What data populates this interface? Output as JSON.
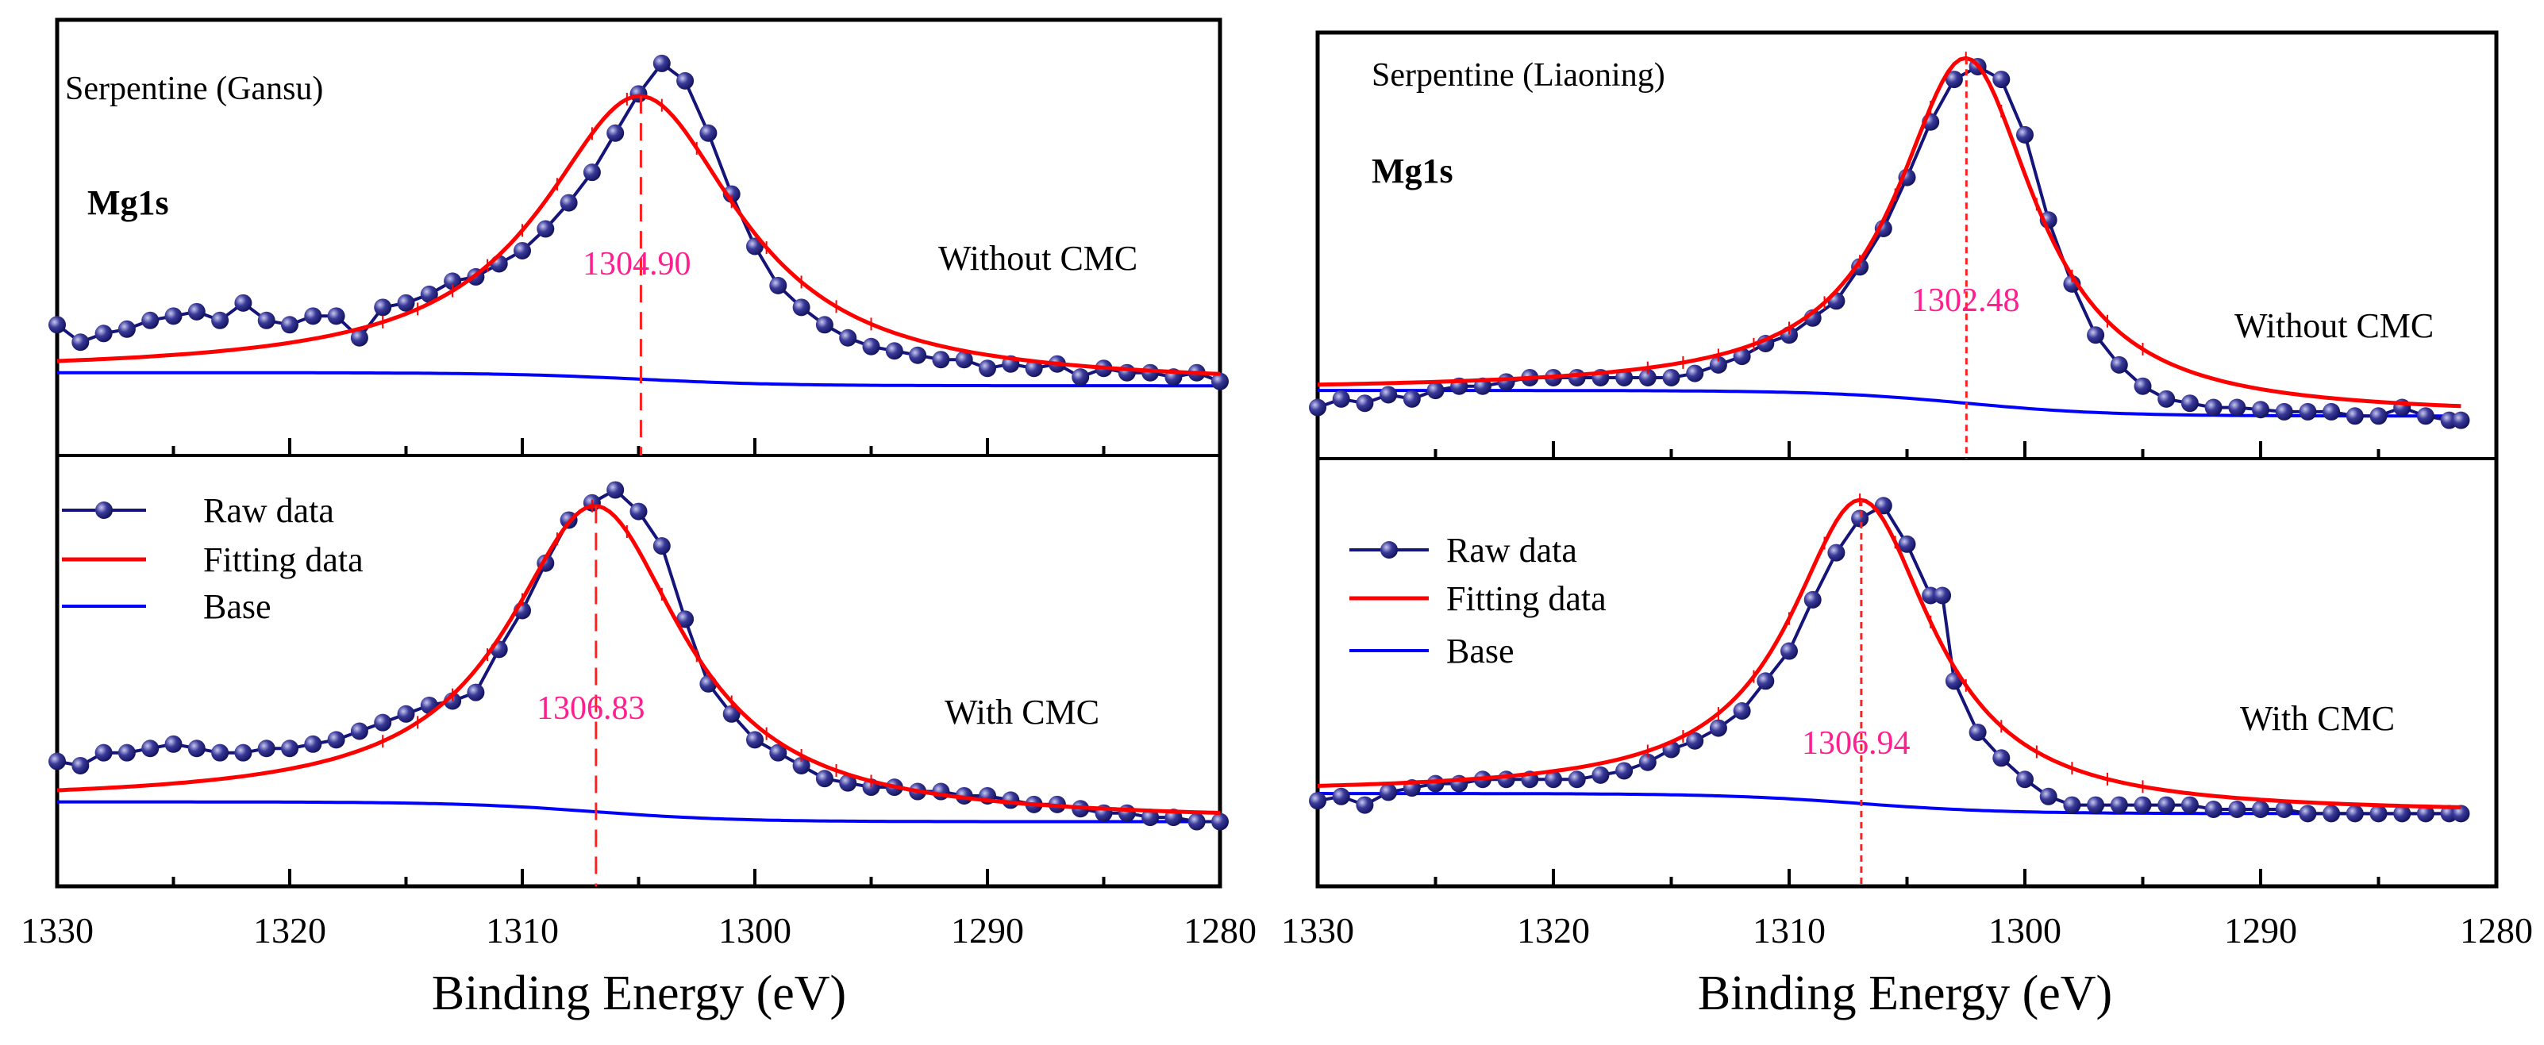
{
  "chart_data": [
    {
      "type": "line",
      "title": "Serpentine (Gansu)",
      "element_label": "Mg1s",
      "xlabel": "Binding Energy (eV)",
      "ylabel": "",
      "xlim": [
        1330,
        1280
      ],
      "xticks": [
        "1330",
        "1320",
        "1310",
        "1300",
        "1290",
        "1280"
      ],
      "legend": {
        "placement": "left",
        "entries": [
          "Raw data",
          "Fitting data",
          "Base"
        ]
      },
      "colors": {
        "raw": "#14147a",
        "fit": "#ff0000",
        "base": "#0000ff",
        "peak_label": "#ff1f8f"
      },
      "subplots": [
        {
          "condition": "Without CMC",
          "peak_label": "1304.90",
          "fit": {
            "center": 1304.9,
            "height": 0.65,
            "hwhm": 5.2,
            "base_left": 0.19,
            "base_right": 0.16
          },
          "raw": [
            [
              1330,
              0.3
            ],
            [
              1329,
              0.26
            ],
            [
              1328,
              0.28
            ],
            [
              1327,
              0.29
            ],
            [
              1326,
              0.31
            ],
            [
              1325,
              0.32
            ],
            [
              1324,
              0.33
            ],
            [
              1323,
              0.31
            ],
            [
              1322,
              0.35
            ],
            [
              1321,
              0.31
            ],
            [
              1320,
              0.3
            ],
            [
              1319,
              0.32
            ],
            [
              1318,
              0.32
            ],
            [
              1317,
              0.27
            ],
            [
              1316,
              0.34
            ],
            [
              1315,
              0.35
            ],
            [
              1314,
              0.37
            ],
            [
              1313,
              0.4
            ],
            [
              1312,
              0.41
            ],
            [
              1311,
              0.44
            ],
            [
              1310,
              0.47
            ],
            [
              1309,
              0.52
            ],
            [
              1308,
              0.58
            ],
            [
              1307,
              0.65
            ],
            [
              1306,
              0.74
            ],
            [
              1305,
              0.83
            ],
            [
              1304,
              0.9
            ],
            [
              1303,
              0.86
            ],
            [
              1302,
              0.74
            ],
            [
              1301,
              0.6
            ],
            [
              1300,
              0.48
            ],
            [
              1299,
              0.39
            ],
            [
              1298,
              0.34
            ],
            [
              1297,
              0.3
            ],
            [
              1296,
              0.27
            ],
            [
              1295,
              0.25
            ],
            [
              1294,
              0.24
            ],
            [
              1293,
              0.23
            ],
            [
              1292,
              0.22
            ],
            [
              1291,
              0.22
            ],
            [
              1290,
              0.2
            ],
            [
              1289,
              0.21
            ],
            [
              1288,
              0.2
            ],
            [
              1287,
              0.21
            ],
            [
              1286,
              0.18
            ],
            [
              1285,
              0.2
            ],
            [
              1284,
              0.19
            ],
            [
              1283,
              0.19
            ],
            [
              1282,
              0.18
            ],
            [
              1281,
              0.19
            ],
            [
              1280,
              0.17
            ]
          ]
        },
        {
          "condition": "With CMC",
          "peak_label": "1306.83",
          "fit": {
            "center": 1306.83,
            "height": 0.71,
            "hwhm": 4.6,
            "base_left": 0.196,
            "base_right": 0.15
          },
          "raw": [
            [
              1330,
              0.29
            ],
            [
              1329,
              0.28
            ],
            [
              1328,
              0.31
            ],
            [
              1327,
              0.31
            ],
            [
              1326,
              0.32
            ],
            [
              1325,
              0.33
            ],
            [
              1324,
              0.32
            ],
            [
              1323,
              0.31
            ],
            [
              1322,
              0.31
            ],
            [
              1321,
              0.32
            ],
            [
              1320,
              0.32
            ],
            [
              1319,
              0.33
            ],
            [
              1318,
              0.34
            ],
            [
              1317,
              0.36
            ],
            [
              1316,
              0.38
            ],
            [
              1315,
              0.4
            ],
            [
              1314,
              0.42
            ],
            [
              1313,
              0.43
            ],
            [
              1312,
              0.45
            ],
            [
              1311,
              0.55
            ],
            [
              1310,
              0.64
            ],
            [
              1309,
              0.75
            ],
            [
              1308,
              0.85
            ],
            [
              1307,
              0.89
            ],
            [
              1306,
              0.92
            ],
            [
              1305,
              0.87
            ],
            [
              1304,
              0.79
            ],
            [
              1303,
              0.62
            ],
            [
              1302,
              0.47
            ],
            [
              1301,
              0.4
            ],
            [
              1300,
              0.34
            ],
            [
              1299,
              0.31
            ],
            [
              1298,
              0.28
            ],
            [
              1297,
              0.25
            ],
            [
              1296,
              0.24
            ],
            [
              1295,
              0.23
            ],
            [
              1294,
              0.23
            ],
            [
              1293,
              0.22
            ],
            [
              1292,
              0.22
            ],
            [
              1291,
              0.21
            ],
            [
              1290,
              0.21
            ],
            [
              1289,
              0.2
            ],
            [
              1288,
              0.19
            ],
            [
              1287,
              0.19
            ],
            [
              1286,
              0.18
            ],
            [
              1285,
              0.17
            ],
            [
              1284,
              0.17
            ],
            [
              1283,
              0.16
            ],
            [
              1282,
              0.16
            ],
            [
              1281,
              0.15
            ],
            [
              1280,
              0.15
            ]
          ]
        }
      ]
    },
    {
      "type": "line",
      "title": "Serpentine (Liaoning)",
      "element_label": "Mg1s",
      "xlabel": "Binding Energy (eV)",
      "ylabel": "",
      "xlim": [
        1330,
        1280
      ],
      "xticks": [
        "1330",
        "1320",
        "1310",
        "1300",
        "1290",
        "1280"
      ],
      "legend": {
        "placement": "left",
        "entries": [
          "Raw data",
          "Fitting data",
          "Base"
        ]
      },
      "colors": {
        "raw": "#14147a",
        "fit": "#ff0000",
        "base": "#0000ff",
        "peak_label": "#ff1f8f"
      },
      "subplots": [
        {
          "condition": "Without CMC",
          "peak_label": "1302.48",
          "fit": {
            "center": 1302.48,
            "height": 0.81,
            "hwhm": 3.6,
            "base_left": 0.16,
            "base_right": 0.1
          },
          "raw": [
            [
              1330,
              0.12
            ],
            [
              1329,
              0.14
            ],
            [
              1328,
              0.13
            ],
            [
              1327,
              0.15
            ],
            [
              1326,
              0.14
            ],
            [
              1325,
              0.16
            ],
            [
              1324,
              0.17
            ],
            [
              1323,
              0.17
            ],
            [
              1322,
              0.18
            ],
            [
              1321,
              0.19
            ],
            [
              1320,
              0.19
            ],
            [
              1319,
              0.19
            ],
            [
              1318,
              0.19
            ],
            [
              1317,
              0.19
            ],
            [
              1316,
              0.19
            ],
            [
              1315,
              0.19
            ],
            [
              1314,
              0.2
            ],
            [
              1313,
              0.22
            ],
            [
              1312,
              0.24
            ],
            [
              1311,
              0.27
            ],
            [
              1310,
              0.29
            ],
            [
              1309,
              0.33
            ],
            [
              1308,
              0.37
            ],
            [
              1307,
              0.45
            ],
            [
              1306,
              0.54
            ],
            [
              1305,
              0.66
            ],
            [
              1304,
              0.79
            ],
            [
              1303,
              0.89
            ],
            [
              1302,
              0.92
            ],
            [
              1301,
              0.89
            ],
            [
              1300,
              0.76
            ],
            [
              1299,
              0.56
            ],
            [
              1298,
              0.41
            ],
            [
              1297,
              0.29
            ],
            [
              1296,
              0.22
            ],
            [
              1295,
              0.17
            ],
            [
              1294,
              0.14
            ],
            [
              1293,
              0.13
            ],
            [
              1292,
              0.12
            ],
            [
              1291,
              0.12
            ],
            [
              1290,
              0.115
            ],
            [
              1289,
              0.11
            ],
            [
              1288,
              0.11
            ],
            [
              1287,
              0.11
            ],
            [
              1286,
              0.1
            ],
            [
              1285,
              0.1
            ],
            [
              1284,
              0.12
            ],
            [
              1283,
              0.1
            ],
            [
              1282,
              0.09
            ],
            [
              1281.5,
              0.09
            ]
          ]
        },
        {
          "condition": "With CMC",
          "peak_label": "1306.94",
          "fit": {
            "center": 1306.94,
            "height": 0.71,
            "hwhm": 3.7,
            "base_left": 0.217,
            "base_right": 0.17
          },
          "raw": [
            [
              1330,
              0.2
            ],
            [
              1329,
              0.21
            ],
            [
              1328,
              0.19
            ],
            [
              1327,
              0.22
            ],
            [
              1326,
              0.23
            ],
            [
              1325,
              0.24
            ],
            [
              1324,
              0.24
            ],
            [
              1323,
              0.25
            ],
            [
              1322,
              0.25
            ],
            [
              1321,
              0.25
            ],
            [
              1320,
              0.25
            ],
            [
              1319,
              0.25
            ],
            [
              1318,
              0.26
            ],
            [
              1317,
              0.27
            ],
            [
              1316,
              0.29
            ],
            [
              1315,
              0.32
            ],
            [
              1314,
              0.34
            ],
            [
              1313,
              0.37
            ],
            [
              1312,
              0.41
            ],
            [
              1311,
              0.48
            ],
            [
              1310,
              0.55
            ],
            [
              1309,
              0.67
            ],
            [
              1308,
              0.78
            ],
            [
              1307,
              0.86
            ],
            [
              1306,
              0.89
            ],
            [
              1305,
              0.8
            ],
            [
              1304,
              0.68
            ],
            [
              1303.5,
              0.68
            ],
            [
              1303,
              0.48
            ],
            [
              1302,
              0.36
            ],
            [
              1301,
              0.3
            ],
            [
              1300,
              0.25
            ],
            [
              1299,
              0.21
            ],
            [
              1298,
              0.19
            ],
            [
              1297,
              0.19
            ],
            [
              1296,
              0.19
            ],
            [
              1295,
              0.19
            ],
            [
              1294,
              0.19
            ],
            [
              1293,
              0.19
            ],
            [
              1292,
              0.18
            ],
            [
              1291,
              0.18
            ],
            [
              1290,
              0.18
            ],
            [
              1289,
              0.18
            ],
            [
              1288,
              0.17
            ],
            [
              1287,
              0.17
            ],
            [
              1286,
              0.17
            ],
            [
              1285,
              0.17
            ],
            [
              1284,
              0.17
            ],
            [
              1283,
              0.17
            ],
            [
              1282,
              0.17
            ],
            [
              1281.5,
              0.17
            ]
          ]
        }
      ]
    }
  ]
}
